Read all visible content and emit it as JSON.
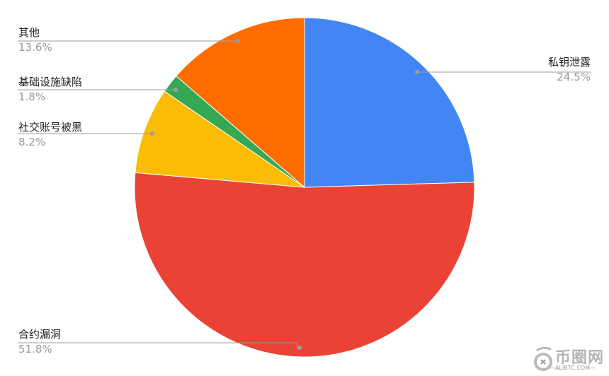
{
  "chart_data": {
    "type": "pie",
    "start_angle": "top, clockwise",
    "legend": "none (leader-line labels)",
    "slices": [
      {
        "label": "私钥泄露",
        "value": 24.5,
        "pct_label": "24.5%",
        "color": "#4285F4"
      },
      {
        "label": "合约漏洞",
        "value": 51.8,
        "pct_label": "51.8%",
        "color": "#EA4335"
      },
      {
        "label": "社交账号被黑",
        "value": 8.2,
        "pct_label": "8.2%",
        "color": "#FBBC04"
      },
      {
        "label": "基础设施缺陷",
        "value": 1.8,
        "pct_label": "1.8%",
        "color": "#34A853"
      },
      {
        "label": "其他",
        "value": 13.6,
        "pct_label": "13.6%",
        "color": "#FF6D01"
      }
    ]
  },
  "watermark": {
    "title": "币圈网",
    "subtitle": "—ALIBTC.COM—"
  }
}
